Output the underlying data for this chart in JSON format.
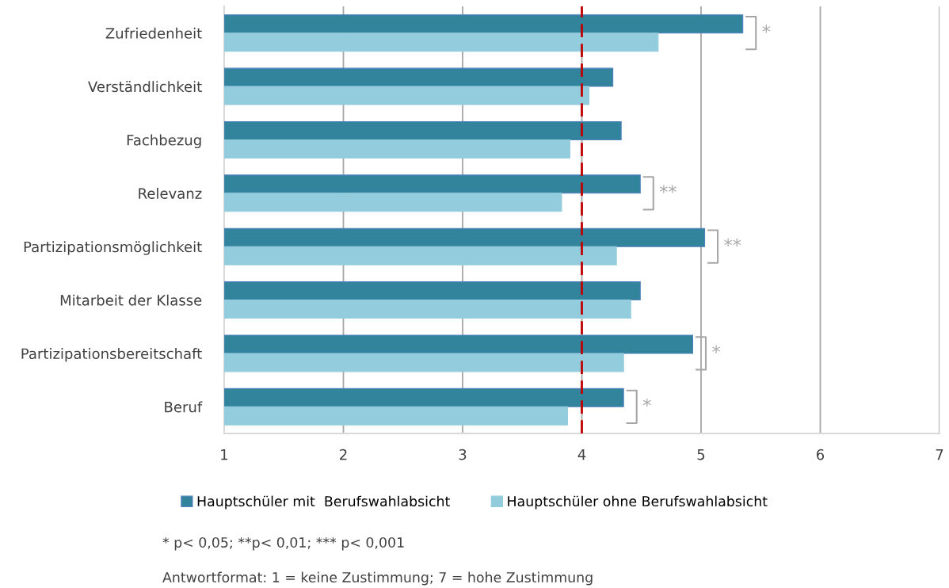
{
  "chart_data": {
    "type": "bar",
    "orientation": "horizontal",
    "categories": [
      "Zufriedenheit",
      "Verständlichkeit",
      "Fachbezug",
      "Relevanz",
      "Partizipationsmöglichkeit",
      "Mitarbeit der Klasse",
      "Partizipationsbereitschaft",
      "Beruf"
    ],
    "series": [
      {
        "name": "Hauptschüler mit  Berufswahlabsicht",
        "color": "#31849b",
        "values": [
          5.35,
          4.26,
          4.33,
          4.49,
          5.03,
          4.49,
          4.93,
          4.35
        ]
      },
      {
        "name": "Hauptschüler ohne Berufswahlabsicht",
        "color": "#93cddd",
        "values": [
          4.64,
          4.06,
          3.9,
          3.83,
          4.29,
          4.41,
          4.35,
          3.88
        ]
      }
    ],
    "xlim": [
      1,
      7
    ],
    "xticks": [
      1,
      2,
      3,
      4,
      5,
      6,
      7
    ],
    "grid": "x",
    "legend": "bottom",
    "ref_lines": [
      {
        "axis": "x",
        "value": 4,
        "color": "#c00000",
        "line_style": "dashed"
      }
    ],
    "annotations": [
      {
        "text": "*",
        "x": 5.35,
        "y": "Zufriedenheit"
      },
      {
        "text": "**",
        "x": 4.49,
        "y": "Relevanz"
      },
      {
        "text": "**",
        "x": 5.03,
        "y": "Partizipationsmöglichkeit"
      },
      {
        "text": "*",
        "x": 4.93,
        "y": "Partizipationsbereitschaft"
      },
      {
        "text": "*",
        "x": 4.35,
        "y": "Beruf"
      },
      "* p< 0,05; **p< 0,01; *** p< 0,001",
      "Antwortformat: 1 = keine Zustimmung; 7 = hohe Zustimmung"
    ]
  }
}
